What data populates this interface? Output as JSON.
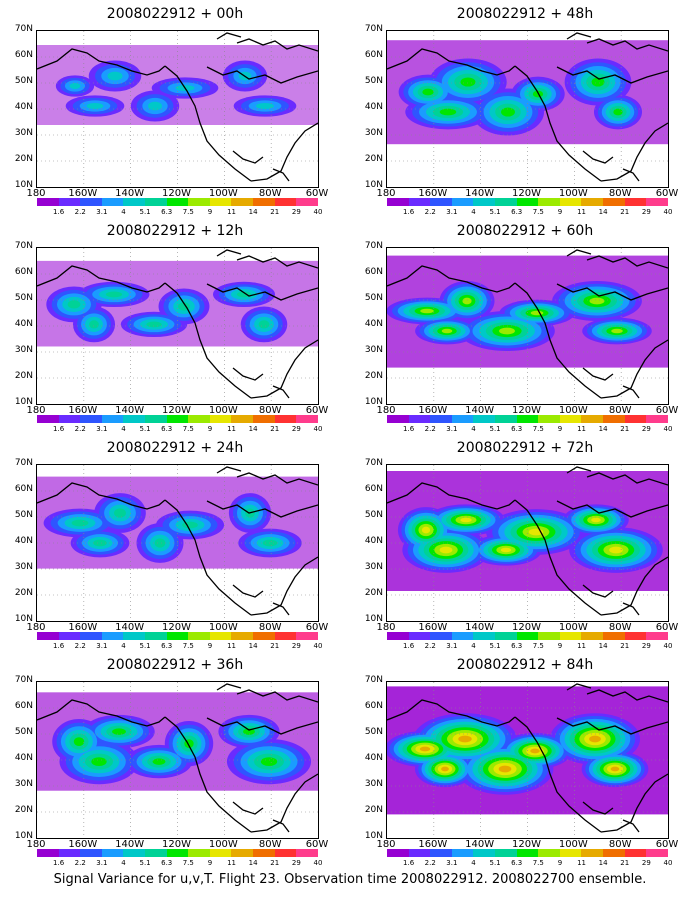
{
  "caption": "Signal Variance for u,v,T. Flight 23. Observation time 2008022912. 2008022700 ensemble.",
  "y_tick_labels": [
    "70N",
    "60N",
    "50N",
    "40N",
    "30N",
    "20N",
    "10N"
  ],
  "x_tick_labels": [
    "180",
    "160W",
    "140W",
    "120W",
    "100W",
    "80W",
    "60W"
  ],
  "colorbar_labels": [
    "1.6",
    "2.2",
    "3.1",
    "4",
    "5.1",
    "6.3",
    "7.5",
    "9",
    "11",
    "14",
    "21",
    "29",
    "40"
  ],
  "colorbar_colors": [
    "#9600d2",
    "#6a2bff",
    "#2f55ff",
    "#1a9cff",
    "#00c8c8",
    "#00d296",
    "#00e600",
    "#9bea00",
    "#e6e600",
    "#e6aa00",
    "#f06e00",
    "#ff3232",
    "#ff3c8c"
  ],
  "panels": [
    {
      "title": "2008022912 + 00h",
      "lead": "00h",
      "intensity": 0.25
    },
    {
      "title": "2008022912 + 48h",
      "lead": "48h",
      "intensity": 0.55
    },
    {
      "title": "2008022912 + 12h",
      "lead": "12h",
      "intensity": 0.32
    },
    {
      "title": "2008022912 + 60h",
      "lead": "60h",
      "intensity": 0.65
    },
    {
      "title": "2008022912 + 24h",
      "lead": "24h",
      "intensity": 0.4
    },
    {
      "title": "2008022912 + 72h",
      "lead": "72h",
      "intensity": 0.75
    },
    {
      "title": "2008022912 + 36h",
      "lead": "36h",
      "intensity": 0.48
    },
    {
      "title": "2008022912 + 84h",
      "lead": "84h",
      "intensity": 0.85
    }
  ]
}
